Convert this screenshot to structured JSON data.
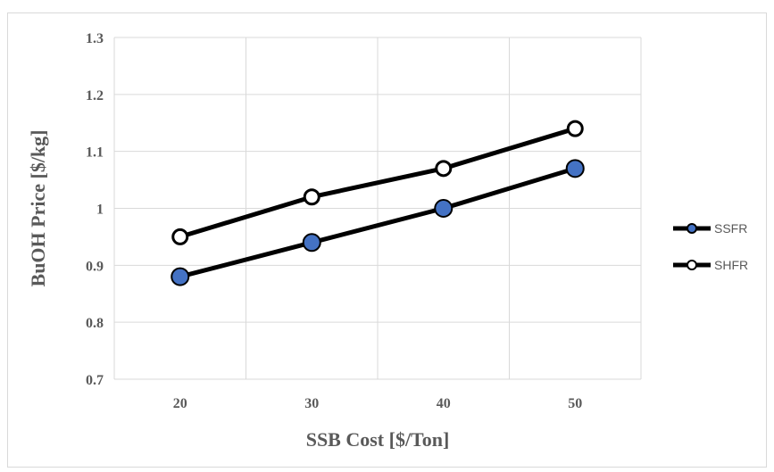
{
  "chart_data": {
    "type": "line",
    "title": "",
    "xlabel": "SSB Cost [$/Ton]",
    "ylabel": "BuOH Price [$/kg]",
    "x": [
      20,
      30,
      40,
      50
    ],
    "xtick_labels": [
      "20",
      "30",
      "40",
      "50"
    ],
    "ylim": [
      0.7,
      1.3
    ],
    "ytick_labels": [
      "0.7",
      "0.8",
      "0.9",
      "1",
      "1.1",
      "1.2",
      "1.3"
    ],
    "grid": true,
    "legend_position": "right",
    "series": [
      {
        "name": "SSFR",
        "values": [
          0.88,
          0.94,
          1.0,
          1.07
        ],
        "marker_fill": "#4472c4",
        "line_color": "#000000"
      },
      {
        "name": "SHFR",
        "values": [
          0.95,
          1.02,
          1.07,
          1.14
        ],
        "marker_fill": "#ffffff",
        "line_color": "#000000"
      }
    ]
  }
}
